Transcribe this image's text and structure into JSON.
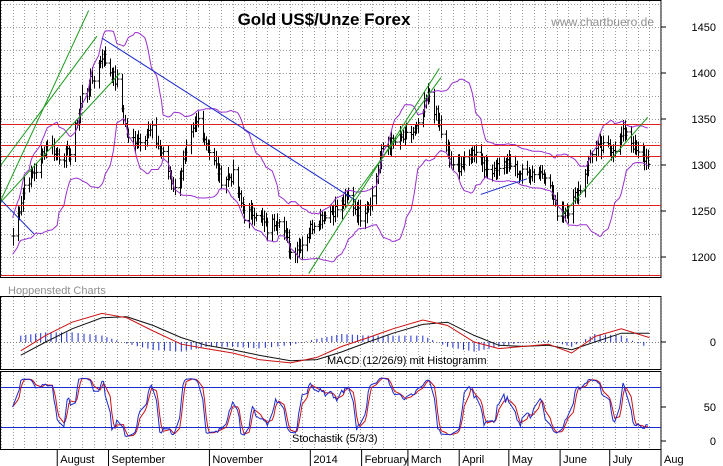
{
  "chart_data": {
    "type": "line",
    "title": "Gold US$/Unze Forex",
    "watermark": "www.chartbuero.de",
    "source_label": "Hoppenstedt Charts",
    "x_months": [
      "August",
      "September",
      "November",
      "2014",
      "February",
      "March",
      "April",
      "May",
      "June",
      "July",
      "Aug"
    ],
    "price_panel": {
      "y_ticks": [
        "1450",
        "1400",
        "1350",
        "1300",
        "1250",
        "1200"
      ],
      "ylim": [
        1170,
        1480
      ],
      "series_type": "ohlc bars",
      "close_estimates": [
        {
          "date": "2013-07-05",
          "close": 1223
        },
        {
          "date": "2013-07-12",
          "close": 1278
        },
        {
          "date": "2013-07-19",
          "close": 1295
        },
        {
          "date": "2013-07-26",
          "close": 1325
        },
        {
          "date": "2013-08-02",
          "close": 1310
        },
        {
          "date": "2013-08-09",
          "close": 1312
        },
        {
          "date": "2013-08-16",
          "close": 1375
        },
        {
          "date": "2013-08-23",
          "close": 1395
        },
        {
          "date": "2013-08-28",
          "close": 1420
        },
        {
          "date": "2013-09-06",
          "close": 1388
        },
        {
          "date": "2013-09-13",
          "close": 1326
        },
        {
          "date": "2013-09-20",
          "close": 1330
        },
        {
          "date": "2013-09-27",
          "close": 1337
        },
        {
          "date": "2013-10-04",
          "close": 1310
        },
        {
          "date": "2013-10-11",
          "close": 1272
        },
        {
          "date": "2013-10-18",
          "close": 1315
        },
        {
          "date": "2013-10-25",
          "close": 1350
        },
        {
          "date": "2013-11-01",
          "close": 1315
        },
        {
          "date": "2013-11-08",
          "close": 1285
        },
        {
          "date": "2013-11-15",
          "close": 1288
        },
        {
          "date": "2013-11-22",
          "close": 1245
        },
        {
          "date": "2013-11-29",
          "close": 1250
        },
        {
          "date": "2013-12-06",
          "close": 1230
        },
        {
          "date": "2013-12-13",
          "close": 1245
        },
        {
          "date": "2013-12-20",
          "close": 1205
        },
        {
          "date": "2013-12-27",
          "close": 1215
        },
        {
          "date": "2014-01-03",
          "close": 1238
        },
        {
          "date": "2014-01-10",
          "close": 1248
        },
        {
          "date": "2014-01-17",
          "close": 1252
        },
        {
          "date": "2014-01-24",
          "close": 1265
        },
        {
          "date": "2014-01-31",
          "close": 1245
        },
        {
          "date": "2014-02-07",
          "close": 1265
        },
        {
          "date": "2014-02-14",
          "close": 1320
        },
        {
          "date": "2014-02-21",
          "close": 1325
        },
        {
          "date": "2014-02-28",
          "close": 1330
        },
        {
          "date": "2014-03-07",
          "close": 1340
        },
        {
          "date": "2014-03-14",
          "close": 1380
        },
        {
          "date": "2014-03-21",
          "close": 1335
        },
        {
          "date": "2014-03-28",
          "close": 1295
        },
        {
          "date": "2014-04-04",
          "close": 1302
        },
        {
          "date": "2014-04-11",
          "close": 1318
        },
        {
          "date": "2014-04-18",
          "close": 1295
        },
        {
          "date": "2014-04-25",
          "close": 1300
        },
        {
          "date": "2014-05-02",
          "close": 1300
        },
        {
          "date": "2014-05-09",
          "close": 1290
        },
        {
          "date": "2014-05-16",
          "close": 1293
        },
        {
          "date": "2014-05-23",
          "close": 1292
        },
        {
          "date": "2014-05-30",
          "close": 1250
        },
        {
          "date": "2014-06-06",
          "close": 1252
        },
        {
          "date": "2014-06-13",
          "close": 1275
        },
        {
          "date": "2014-06-20",
          "close": 1315
        },
        {
          "date": "2014-06-27",
          "close": 1318
        },
        {
          "date": "2014-07-04",
          "close": 1320
        },
        {
          "date": "2014-07-11",
          "close": 1338
        },
        {
          "date": "2014-07-18",
          "close": 1310
        },
        {
          "date": "2014-07-25",
          "close": 1305
        }
      ],
      "bollinger_bands": {
        "color": "#9a2fd0"
      },
      "horizontal_levels": [
        1345,
        1322,
        1310,
        1257,
        1180
      ],
      "trendlines": [
        {
          "color": "#1a9a1a",
          "from": {
            "date": "2013-06-28",
            "price": 1262
          },
          "to": {
            "date": "2013-08-20",
            "price": 1468
          }
        },
        {
          "color": "#1a9a1a",
          "from": {
            "date": "2013-06-28",
            "price": 1300
          },
          "to": {
            "date": "2013-08-25",
            "price": 1440
          }
        },
        {
          "color": "#1a9a1a",
          "from": {
            "date": "2013-06-28",
            "price": 1260
          },
          "to": {
            "date": "2013-09-08",
            "price": 1400
          }
        },
        {
          "color": "#1a2ad0",
          "from": {
            "date": "2013-06-28",
            "price": 1262
          },
          "to": {
            "date": "2013-07-18",
            "price": 1225
          }
        },
        {
          "color": "#1a2ad0",
          "from": {
            "date": "2013-08-28",
            "price": 1438
          },
          "to": {
            "date": "2014-01-28",
            "price": 1262
          }
        },
        {
          "color": "#1a9a1a",
          "from": {
            "date": "2013-12-31",
            "price": 1182
          },
          "to": {
            "date": "2014-03-20",
            "price": 1405
          }
        },
        {
          "color": "#1a9a1a",
          "from": {
            "date": "2014-01-21",
            "price": 1250
          },
          "to": {
            "date": "2014-03-21",
            "price": 1395
          }
        },
        {
          "color": "#1a2ad0",
          "from": {
            "date": "2014-04-14",
            "price": 1268
          },
          "to": {
            "date": "2014-05-12",
            "price": 1285
          }
        },
        {
          "color": "#1a9a1a",
          "from": {
            "date": "2014-06-02",
            "price": 1245
          },
          "to": {
            "date": "2014-07-24",
            "price": 1352
          }
        }
      ]
    },
    "macd_panel": {
      "label": "MACD (12/26/9) mit Histogramm",
      "y_ticks": [
        "0"
      ],
      "macd_color": "#cc1111",
      "signal_color": "#111111",
      "histogram_color": "#1a2ad0",
      "macd_values": [
        {
          "date": "2013-07-10",
          "value": -8
        },
        {
          "date": "2013-07-25",
          "value": 6
        },
        {
          "date": "2013-08-10",
          "value": 18
        },
        {
          "date": "2013-08-28",
          "value": 26
        },
        {
          "date": "2013-09-12",
          "value": 22
        },
        {
          "date": "2013-09-28",
          "value": 10
        },
        {
          "date": "2013-10-15",
          "value": -2
        },
        {
          "date": "2013-10-30",
          "value": -6
        },
        {
          "date": "2013-11-15",
          "value": -10
        },
        {
          "date": "2013-12-01",
          "value": -16
        },
        {
          "date": "2013-12-20",
          "value": -19
        },
        {
          "date": "2014-01-05",
          "value": -14
        },
        {
          "date": "2014-01-20",
          "value": -4
        },
        {
          "date": "2014-02-05",
          "value": 4
        },
        {
          "date": "2014-02-20",
          "value": 12
        },
        {
          "date": "2014-03-10",
          "value": 20
        },
        {
          "date": "2014-03-25",
          "value": 15
        },
        {
          "date": "2014-04-10",
          "value": 0
        },
        {
          "date": "2014-04-25",
          "value": -6
        },
        {
          "date": "2014-05-10",
          "value": -4
        },
        {
          "date": "2014-05-25",
          "value": -2
        },
        {
          "date": "2014-06-08",
          "value": -10
        },
        {
          "date": "2014-06-22",
          "value": 5
        },
        {
          "date": "2014-07-08",
          "value": 12
        },
        {
          "date": "2014-07-25",
          "value": 4
        }
      ],
      "signal_values": [
        {
          "date": "2013-07-10",
          "value": -12
        },
        {
          "date": "2013-07-25",
          "value": 0
        },
        {
          "date": "2013-08-10",
          "value": 12
        },
        {
          "date": "2013-08-28",
          "value": 22
        },
        {
          "date": "2013-09-12",
          "value": 23
        },
        {
          "date": "2013-09-28",
          "value": 15
        },
        {
          "date": "2013-10-15",
          "value": 4
        },
        {
          "date": "2013-10-30",
          "value": -3
        },
        {
          "date": "2013-11-15",
          "value": -7
        },
        {
          "date": "2013-12-01",
          "value": -12
        },
        {
          "date": "2013-12-20",
          "value": -17
        },
        {
          "date": "2014-01-05",
          "value": -16
        },
        {
          "date": "2014-01-20",
          "value": -9
        },
        {
          "date": "2014-02-05",
          "value": 0
        },
        {
          "date": "2014-02-20",
          "value": 8
        },
        {
          "date": "2014-03-10",
          "value": 16
        },
        {
          "date": "2014-03-25",
          "value": 18
        },
        {
          "date": "2014-04-10",
          "value": 6
        },
        {
          "date": "2014-04-25",
          "value": -3
        },
        {
          "date": "2014-05-10",
          "value": -4
        },
        {
          "date": "2014-05-25",
          "value": -3
        },
        {
          "date": "2014-06-08",
          "value": -7
        },
        {
          "date": "2014-06-22",
          "value": 0
        },
        {
          "date": "2014-07-08",
          "value": 8
        },
        {
          "date": "2014-07-25",
          "value": 8
        }
      ]
    },
    "stochastic_panel": {
      "label": "Stochastik (5/3/3)",
      "y_ticks": [
        "50",
        "0"
      ],
      "ylim": [
        0,
        100
      ],
      "reference_lines": [
        80,
        20
      ],
      "k_color": "#1a2ad0",
      "d_color": "#cc1111"
    }
  }
}
